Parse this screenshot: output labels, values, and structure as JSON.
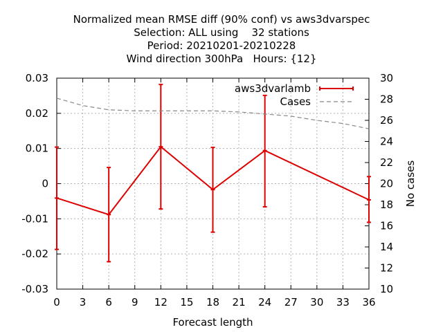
{
  "chart_data": {
    "type": "line",
    "title_lines": [
      "Normalized mean RMSE diff (90% conf) vs aws3dvarspec",
      "Selection: ALL using    32 stations",
      "Period: 20210201-20210228",
      "Wind direction 300hPa   Hours: {12}"
    ],
    "xlabel": "Forecast length",
    "y2label": "No cases",
    "xlim": [
      0,
      36
    ],
    "ylim": [
      -0.03,
      0.03
    ],
    "y2lim": [
      10,
      30
    ],
    "x_ticks": [
      "0",
      "3",
      "6",
      "9",
      "12",
      "15",
      "18",
      "21",
      "24",
      "27",
      "30",
      "33",
      "36"
    ],
    "y_ticks": [
      "-0.03",
      "-0.02",
      "-0.01",
      "0",
      "0.01",
      "0.02",
      "0.03"
    ],
    "y2_ticks": [
      "10",
      "12",
      "14",
      "16",
      "18",
      "20",
      "22",
      "24",
      "26",
      "28",
      "30"
    ],
    "grid": true,
    "legend_position": "top-right",
    "series": [
      {
        "name": "aws3dvarlamb",
        "axis": "left",
        "color": "#dd0000",
        "x": [
          0,
          6,
          12,
          18,
          24,
          36
        ],
        "values": [
          -0.0041,
          -0.0088,
          0.0105,
          -0.0017,
          0.0094,
          -0.0046
        ],
        "err_low": [
          -0.0187,
          -0.0222,
          -0.0072,
          -0.0138,
          -0.0066,
          -0.011
        ],
        "err_high": [
          0.0104,
          0.0046,
          0.0282,
          0.0103,
          0.0251,
          0.002
        ]
      },
      {
        "name": "Cases",
        "axis": "right",
        "color": "#888888",
        "x": [
          0,
          3,
          6,
          9,
          12,
          15,
          18,
          21,
          24,
          27,
          30,
          33,
          36
        ],
        "values": [
          28.1,
          27.4,
          27.0,
          26.9,
          26.9,
          26.9,
          26.9,
          26.8,
          26.6,
          26.4,
          26.0,
          25.7,
          25.2
        ]
      }
    ]
  }
}
